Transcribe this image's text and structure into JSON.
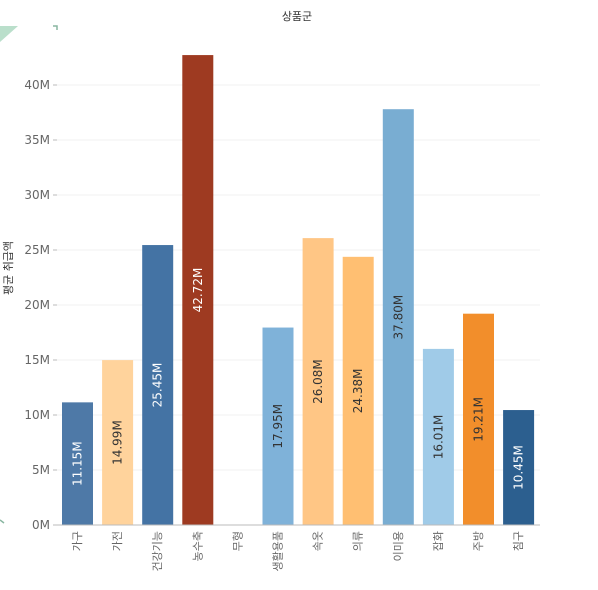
{
  "chart_data": {
    "type": "bar",
    "title": "상품군",
    "xlabel": "",
    "ylabel": "평균 취급액 ",
    "categories": [
      "가구",
      "가전",
      "건강기능",
      "농수축",
      "무형",
      "생활용품",
      "속옷",
      "의류",
      "이미용",
      "잡화",
      "주방",
      "침구"
    ],
    "values": [
      11.15,
      14.99,
      25.45,
      42.72,
      null,
      17.95,
      26.08,
      24.38,
      37.8,
      16.01,
      19.21,
      10.45
    ],
    "value_labels": [
      "11.15M",
      "14.99M",
      "25.45M",
      "42.72M",
      "",
      "17.95M",
      "26.08M",
      "24.38M",
      "37.80M",
      "16.01M",
      "19.21M",
      "10.45M"
    ],
    "colors": [
      "#4e79a7",
      "#ffd39c",
      "#4473a4",
      "#9e3a21",
      "#cccccc",
      "#7fb2d9",
      "#ffc685",
      "#ffbf72",
      "#79add2",
      "#a0cbe8",
      "#f28e2b",
      "#2c5f8f"
    ],
    "label_colors": [
      "#ffffff",
      "#333333",
      "#ffffff",
      "#ffffff",
      "#333333",
      "#333333",
      "#333333",
      "#333333",
      "#333333",
      "#333333",
      "#333333",
      "#ffffff"
    ],
    "ylim": [
      0,
      45
    ],
    "yticks": [
      0,
      5,
      10,
      15,
      20,
      25,
      30,
      35,
      40
    ],
    "ytick_labels": [
      "0M",
      "5M",
      "10M",
      "15M",
      "20M",
      "25M",
      "30M",
      "35M",
      "40M"
    ],
    "grid": true,
    "legend": "none"
  }
}
